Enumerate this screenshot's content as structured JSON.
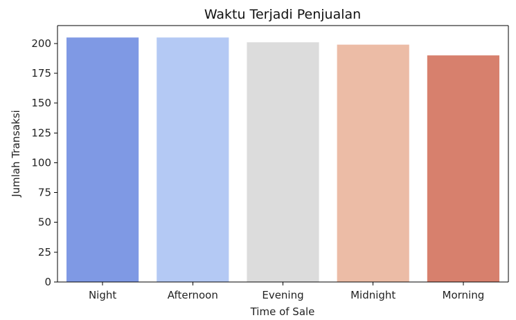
{
  "chart_data": {
    "type": "bar",
    "title": "Waktu Terjadi Penjualan",
    "xlabel": "Time of Sale",
    "ylabel": "Jumlah Transaksi",
    "categories": [
      "Night",
      "Afternoon",
      "Evening",
      "Midnight",
      "Morning"
    ],
    "values": [
      205,
      205,
      201,
      199,
      190
    ],
    "ylim": [
      0,
      215
    ],
    "yticks": [
      0,
      25,
      50,
      75,
      100,
      125,
      150,
      175,
      200
    ],
    "colors": [
      "#7f99e4",
      "#b4c9f4",
      "#dcdcdc",
      "#ecbca6",
      "#d7806d"
    ],
    "grid": false,
    "legend": "none"
  }
}
